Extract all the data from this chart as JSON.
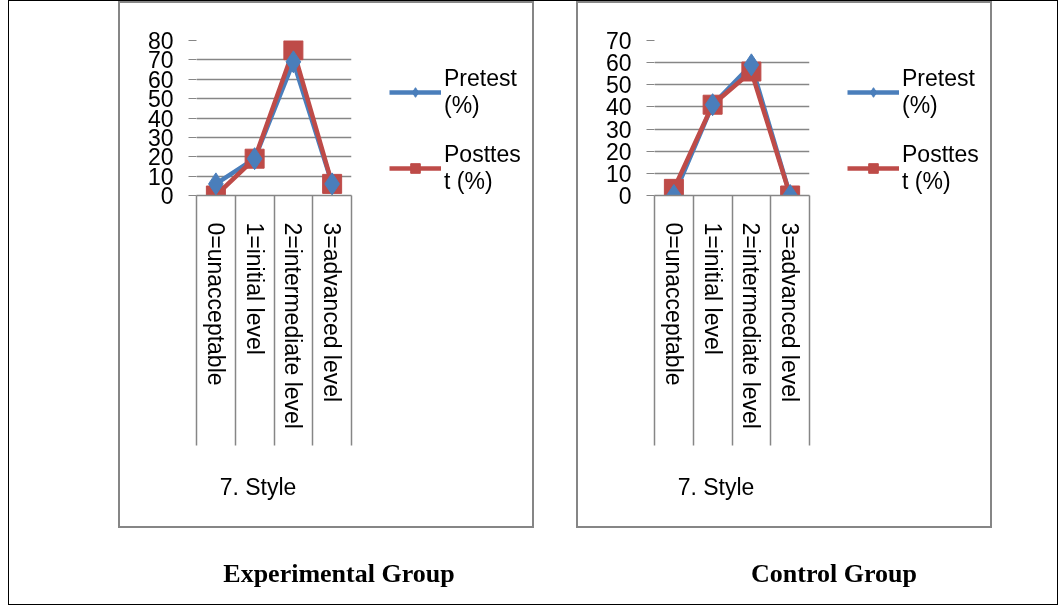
{
  "chart_data": [
    {
      "type": "line",
      "title": "Experimental Group",
      "xlabel": "7.      Style",
      "categories": [
        "0=unacceptable",
        "1=initial level",
        "2=intermediate level",
        "3=advanced level"
      ],
      "series": [
        {
          "name": "Pretest (%)",
          "color": "#4a7ebb",
          "marker": "diamond",
          "values": [
            6,
            19,
            69,
            6
          ]
        },
        {
          "name": "Posttest (%)",
          "color": "#be4b48",
          "marker": "square",
          "values": [
            0,
            19,
            75,
            6
          ]
        }
      ],
      "ylim": [
        0,
        80
      ],
      "yticks": [
        0,
        10,
        20,
        30,
        40,
        50,
        60,
        70,
        80
      ],
      "grid": "y",
      "legend": "right",
      "line_style": "solid"
    },
    {
      "type": "line",
      "title": "Control Group",
      "xlabel": "7.      Style",
      "categories": [
        "0=unacceptable",
        "1=initial level",
        "2=intermediate level",
        "3=advanced level"
      ],
      "series": [
        {
          "name": "Pretest (%)",
          "color": "#4a7ebb",
          "marker": "diamond",
          "values": [
            0,
            41,
            59,
            0
          ]
        },
        {
          "name": "Posttest (%)",
          "color": "#be4b48",
          "marker": "square",
          "values": [
            3,
            41,
            56,
            0
          ]
        }
      ],
      "ylim": [
        0,
        70
      ],
      "yticks": [
        0,
        10,
        20,
        30,
        40,
        50,
        60,
        70
      ],
      "grid": "y",
      "legend": "right",
      "line_style": "solid"
    }
  ]
}
